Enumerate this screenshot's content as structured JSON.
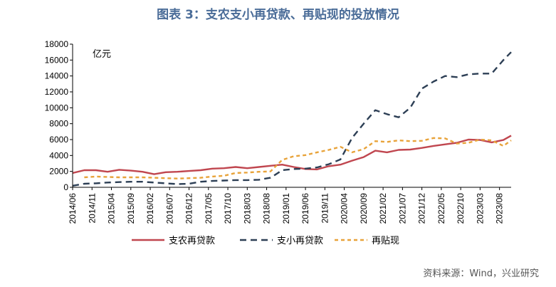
{
  "title": "图表 3：支农支小再贷款、再贴现的投放情况",
  "source": "资料来源：Wind，兴业研究",
  "chart_data": {
    "type": "line",
    "unit": "亿元",
    "ylim": [
      0,
      18000
    ],
    "yticks": [
      0,
      2000,
      4000,
      6000,
      8000,
      10000,
      12000,
      14000,
      16000,
      18000
    ],
    "xticks": [
      "2014/06",
      "2014/11",
      "2015/04",
      "2015/09",
      "2016/02",
      "2016/07",
      "2016/12",
      "2017/05",
      "2017/10",
      "2018/03",
      "2018/08",
      "2019/01",
      "2019/06",
      "2019/11",
      "2020/04",
      "2020/09",
      "2021/02",
      "2021/07",
      "2021/12",
      "2022/05",
      "2022/10",
      "2023/03",
      "2023/08"
    ],
    "x_start": "2014/06",
    "legend_position": "bottom",
    "series": [
      {
        "name": "支农再贷款",
        "color": "#c0464f",
        "dash": "solid",
        "x": [
          "2014/06",
          "2014/09",
          "2014/12",
          "2015/03",
          "2015/06",
          "2015/09",
          "2015/12",
          "2016/03",
          "2016/06",
          "2016/09",
          "2016/12",
          "2017/03",
          "2017/06",
          "2017/09",
          "2017/12",
          "2018/03",
          "2018/06",
          "2018/09",
          "2018/12",
          "2019/03",
          "2019/06",
          "2019/09",
          "2019/12",
          "2020/03",
          "2020/06",
          "2020/09",
          "2020/12",
          "2021/03",
          "2021/06",
          "2021/09",
          "2021/12",
          "2022/03",
          "2022/06",
          "2022/09",
          "2022/12",
          "2023/03",
          "2023/06",
          "2023/09",
          "2023/11"
        ],
        "values": [
          1800,
          2150,
          2150,
          1950,
          2200,
          2100,
          1950,
          1650,
          1900,
          1950,
          2050,
          2150,
          2350,
          2400,
          2550,
          2400,
          2550,
          2700,
          2850,
          2550,
          2300,
          2250,
          2650,
          2850,
          3350,
          3800,
          4600,
          4400,
          4700,
          4750,
          4950,
          5200,
          5400,
          5600,
          6000,
          5950,
          5650,
          5950,
          6500
        ]
      },
      {
        "name": "支小再贷款",
        "color": "#2d3f55",
        "dash": "long",
        "x": [
          "2014/06",
          "2014/09",
          "2014/12",
          "2015/03",
          "2015/06",
          "2015/09",
          "2015/12",
          "2016/03",
          "2016/06",
          "2016/09",
          "2016/12",
          "2017/03",
          "2017/06",
          "2017/09",
          "2017/12",
          "2018/03",
          "2018/06",
          "2018/09",
          "2018/12",
          "2019/03",
          "2019/06",
          "2019/09",
          "2019/12",
          "2020/03",
          "2020/06",
          "2020/09",
          "2020/12",
          "2021/03",
          "2021/06",
          "2021/09",
          "2021/12",
          "2022/03",
          "2022/06",
          "2022/09",
          "2022/12",
          "2023/03",
          "2023/06",
          "2023/09",
          "2023/11"
        ],
        "values": [
          200,
          450,
          500,
          600,
          650,
          700,
          700,
          600,
          500,
          400,
          450,
          700,
          800,
          850,
          900,
          900,
          950,
          1200,
          2150,
          2300,
          2350,
          2500,
          2900,
          3500,
          6200,
          8000,
          9700,
          9200,
          8800,
          10000,
          12400,
          13300,
          14000,
          13850,
          14200,
          14300,
          14300,
          16000,
          17000
        ]
      },
      {
        "name": "再贴现",
        "color": "#e8a33a",
        "dash": "short",
        "x": [
          "2014/06",
          "2014/09",
          "2014/12",
          "2015/03",
          "2015/06",
          "2015/09",
          "2015/12",
          "2016/03",
          "2016/06",
          "2016/09",
          "2016/12",
          "2017/03",
          "2017/06",
          "2017/09",
          "2017/12",
          "2018/03",
          "2018/06",
          "2018/09",
          "2018/12",
          "2019/03",
          "2019/06",
          "2019/09",
          "2019/12",
          "2020/03",
          "2020/06",
          "2020/09",
          "2020/12",
          "2021/03",
          "2021/06",
          "2021/09",
          "2021/12",
          "2022/03",
          "2022/06",
          "2022/09",
          "2022/12",
          "2023/03",
          "2023/06",
          "2023/09",
          "2023/11"
        ],
        "values": [
          null,
          1250,
          1350,
          1300,
          1250,
          1250,
          1250,
          1200,
          1150,
          1100,
          1150,
          1200,
          1350,
          1450,
          1800,
          1850,
          1950,
          2000,
          3450,
          3900,
          4050,
          4400,
          4700,
          5100,
          4400,
          4800,
          5800,
          5700,
          5900,
          5800,
          5850,
          6200,
          6150,
          5500,
          5600,
          6000,
          5900,
          5200,
          5900
        ]
      }
    ]
  }
}
